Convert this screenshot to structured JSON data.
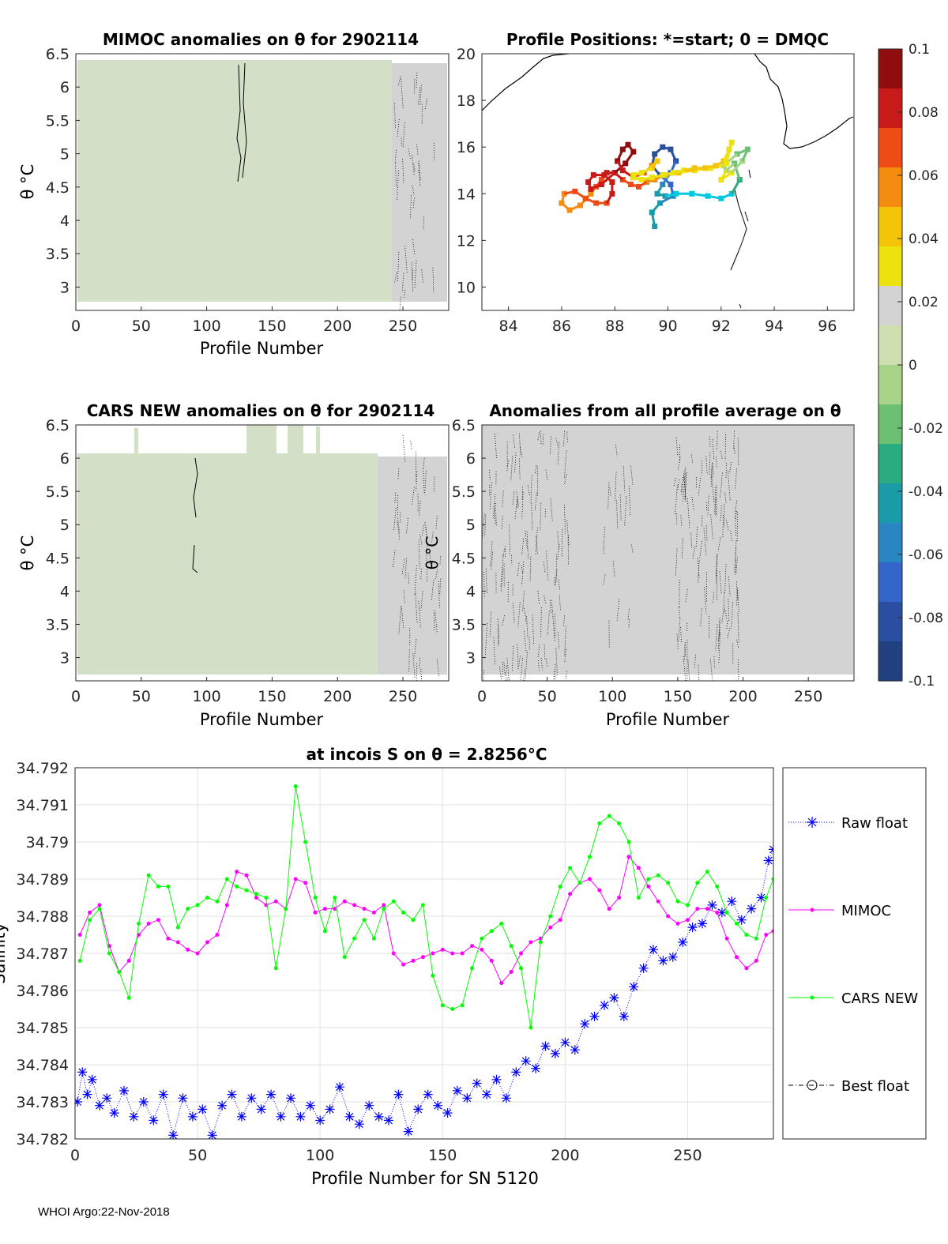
{
  "footer": "WHOI Argo:22-Nov-2018",
  "colors": {
    "raw": "#0000ff",
    "mimoc": "#ff00ff",
    "cars": "#00ff00",
    "best": "#000000",
    "field_gray": "#d3d3d3",
    "field_green": "#d4dfc8"
  },
  "chart_data": [
    {
      "type": "heatmap",
      "id": "mimoc",
      "title": "MIMOC anomalies on θ  for 2902114",
      "xlabel": "Profile Number",
      "ylabel": "θ °C",
      "xlim": [
        0,
        285
      ],
      "ylim": [
        2.65,
        6.5
      ],
      "xticks": [
        "0",
        "50",
        "100",
        "150",
        "200",
        "250"
      ],
      "yticks": [
        "6.5",
        "6",
        "5.5",
        "5",
        "4.5",
        "4",
        "3.5",
        "3"
      ]
    },
    {
      "type": "scatter",
      "id": "positions",
      "title": "Profile Positions: *=start; 0 = DMQC",
      "xlim": [
        83,
        97
      ],
      "ylim": [
        9,
        20
      ],
      "xticks": [
        "84",
        "86",
        "88",
        "90",
        "92",
        "94",
        "96"
      ],
      "yticks": [
        "20",
        "18",
        "16",
        "14",
        "12",
        "10"
      ],
      "track": {
        "lon": [
          89.5,
          89.4,
          89.7,
          90.2,
          90.1,
          89.7,
          89.4,
          89.5,
          89.8,
          90.1,
          90.3,
          90.1,
          89.8,
          89.6,
          89.9,
          90.3,
          90.9,
          91.5,
          92.0,
          92.4,
          92.7,
          92.5,
          92.2,
          92.0,
          92.4,
          92.8,
          93.0,
          92.6,
          92.1,
          91.6,
          91.0,
          90.4,
          89.9,
          89.5,
          89.2,
          88.9,
          88.6,
          88.3,
          88.0,
          87.7,
          87.5,
          87.3,
          87.1,
          86.7,
          86.3,
          86.0,
          86.1,
          86.5,
          86.9,
          87.3,
          87.7,
          87.9,
          87.9,
          87.6,
          87.2,
          87.0,
          87.1,
          87.5,
          88.0,
          88.4,
          88.7,
          88.5,
          88.3,
          88.1,
          88.3,
          88.7,
          89.1,
          89.4,
          89.6,
          89.4,
          89.0,
          88.7,
          88.7,
          89.0,
          89.4,
          89.8,
          90.2,
          90.6,
          91.0,
          91.4,
          91.8,
          92.1,
          92.3,
          92.4,
          92.2
        ],
        "lat": [
          12.6,
          13.2,
          13.6,
          13.9,
          14.4,
          14.8,
          15.2,
          15.7,
          16.0,
          15.9,
          15.4,
          14.9,
          14.4,
          14.0,
          13.9,
          14.0,
          14.0,
          13.9,
          13.8,
          14.0,
          14.6,
          15.3,
          15.0,
          14.6,
          14.9,
          15.4,
          15.9,
          15.7,
          15.2,
          15.1,
          15.0,
          14.9,
          14.8,
          14.6,
          14.5,
          14.3,
          14.4,
          14.6,
          14.9,
          14.9,
          14.6,
          14.3,
          14.0,
          13.5,
          13.3,
          13.6,
          14.0,
          14.1,
          13.8,
          13.6,
          13.6,
          14.0,
          14.5,
          14.8,
          14.8,
          14.5,
          14.2,
          14.4,
          14.9,
          15.3,
          15.8,
          16.1,
          15.9,
          15.4,
          15.0,
          14.7,
          14.9,
          15.2,
          15.4,
          15.1,
          14.9,
          14.8,
          14.7,
          14.6,
          14.7,
          14.8,
          14.9,
          15.0,
          15.1,
          15.1,
          15.2,
          15.4,
          15.9,
          16.2,
          15.3
        ]
      }
    },
    {
      "type": "heatmap",
      "id": "cars",
      "title": "CARS NEW anomalies on θ for 2902114",
      "xlabel": "Profile Number",
      "ylabel": "θ °C",
      "xlim": [
        0,
        285
      ],
      "ylim": [
        2.65,
        6.5
      ],
      "xticks": [
        "0",
        "50",
        "100",
        "150",
        "200",
        "250"
      ],
      "yticks": [
        "6.5",
        "6",
        "5.5",
        "5",
        "4.5",
        "4",
        "3.5",
        "3"
      ],
      "stray_label": "θ °C"
    },
    {
      "type": "heatmap",
      "id": "profile_avg",
      "title": "Anomalies from all profile average on θ",
      "xlabel": "Profile Number",
      "xlim": [
        0,
        285
      ],
      "ylim": [
        2.65,
        6.5
      ],
      "xticks": [
        "0",
        "50",
        "100",
        "150",
        "200",
        "250"
      ],
      "yticks": [
        "6.5",
        "6",
        "5.5",
        "5",
        "4.5",
        "4",
        "3.5",
        "3"
      ]
    },
    {
      "type": "colorbar",
      "id": "colorbar",
      "range": [
        -0.1,
        0.1
      ],
      "ticks": [
        "0.1",
        "0.08",
        "0.06",
        "0.04",
        "0.02",
        "0",
        "-0.02",
        "-0.04",
        "-0.06",
        "-0.08",
        "-0.1"
      ],
      "colors": [
        "#8f0c0f",
        "#c91a1a",
        "#ef4b14",
        "#f58c10",
        "#f3c408",
        "#ece30e",
        "#d3d3d3",
        "#cfe0b0",
        "#a8d48a",
        "#6cc072",
        "#2aab80",
        "#1b9ba8",
        "#2a86c2",
        "#3366c8",
        "#2a4ea0",
        "#20407f"
      ]
    },
    {
      "type": "line",
      "id": "salinity",
      "title": "at incois S on θ = 2.8256°C",
      "xlabel": "Profile Number for SN 5120",
      "ylabel": "Salinity",
      "xlim": [
        0,
        285
      ],
      "ylim": [
        34.782,
        34.792
      ],
      "xticks": [
        "0",
        "50",
        "100",
        "150",
        "200",
        "250"
      ],
      "yticks": [
        "34.792",
        "34.791",
        "34.79",
        "34.789",
        "34.788",
        "34.787",
        "34.786",
        "34.785",
        "34.784",
        "34.783",
        "34.782"
      ],
      "legend": [
        "Raw float",
        "MIMOC",
        "CARS NEW",
        "Best float"
      ],
      "series": [
        {
          "name": "Raw float",
          "x": [
            1,
            3,
            5,
            7,
            10,
            13,
            16,
            20,
            24,
            28,
            32,
            36,
            40,
            44,
            48,
            52,
            56,
            60,
            64,
            68,
            72,
            76,
            80,
            84,
            88,
            92,
            96,
            100,
            104,
            108,
            112,
            116,
            120,
            124,
            128,
            132,
            136,
            140,
            144,
            148,
            152,
            156,
            160,
            164,
            168,
            172,
            176,
            180,
            184,
            188,
            192,
            196,
            200,
            204,
            208,
            212,
            216,
            220,
            224,
            228,
            232,
            236,
            240,
            244,
            248,
            252,
            256,
            260,
            264,
            268,
            272,
            276,
            280,
            283,
            285
          ],
          "values": [
            34.783,
            34.7838,
            34.7832,
            34.7836,
            34.7829,
            34.7831,
            34.7827,
            34.7833,
            34.7826,
            34.783,
            34.7825,
            34.7832,
            34.7821,
            34.7831,
            34.7826,
            34.7828,
            34.7821,
            34.7829,
            34.7832,
            34.7826,
            34.7831,
            34.7828,
            34.7832,
            34.7826,
            34.7831,
            34.7826,
            34.7829,
            34.7825,
            34.7828,
            34.7834,
            34.7826,
            34.7824,
            34.7829,
            34.7826,
            34.7825,
            34.7832,
            34.7822,
            34.7828,
            34.7832,
            34.7829,
            34.7827,
            34.7833,
            34.7831,
            34.7835,
            34.7832,
            34.7836,
            34.7831,
            34.7838,
            34.7841,
            34.7839,
            34.7845,
            34.7843,
            34.7846,
            34.7844,
            34.7851,
            34.7853,
            34.7856,
            34.7858,
            34.7853,
            34.7861,
            34.7866,
            34.7871,
            34.7868,
            34.7869,
            34.7873,
            34.7877,
            34.7878,
            34.7883,
            34.7881,
            34.7884,
            34.7879,
            34.7882,
            34.7885,
            34.7895,
            34.7898
          ]
        },
        {
          "name": "MIMOC",
          "x": [
            2,
            6,
            10,
            14,
            18,
            22,
            26,
            30,
            34,
            38,
            42,
            46,
            50,
            54,
            58,
            62,
            66,
            70,
            74,
            78,
            82,
            86,
            90,
            94,
            98,
            102,
            106,
            110,
            114,
            118,
            122,
            126,
            130,
            134,
            138,
            142,
            146,
            150,
            154,
            158,
            162,
            166,
            170,
            174,
            178,
            182,
            186,
            190,
            194,
            198,
            202,
            206,
            210,
            214,
            218,
            222,
            226,
            230,
            234,
            238,
            242,
            246,
            250,
            254,
            258,
            262,
            266,
            270,
            274,
            278,
            282,
            285
          ],
          "values": [
            34.7875,
            34.7881,
            34.7883,
            34.7872,
            34.7865,
            34.7868,
            34.7875,
            34.7878,
            34.7879,
            34.7874,
            34.7873,
            34.7871,
            34.787,
            34.7873,
            34.7875,
            34.7883,
            34.7892,
            34.7891,
            34.7885,
            34.7883,
            34.7884,
            34.7882,
            34.789,
            34.7889,
            34.7881,
            34.7882,
            34.7882,
            34.7884,
            34.7883,
            34.7882,
            34.7881,
            34.7883,
            34.787,
            34.7867,
            34.7868,
            34.7869,
            34.787,
            34.7871,
            34.787,
            34.787,
            34.7872,
            34.7871,
            34.7868,
            34.7862,
            34.7865,
            34.787,
            34.7873,
            34.7874,
            34.7877,
            34.7879,
            34.7886,
            34.7889,
            34.789,
            34.7887,
            34.7882,
            34.7885,
            34.7896,
            34.7893,
            34.7888,
            34.7884,
            34.788,
            34.7878,
            34.7879,
            34.7882,
            34.7882,
            34.7881,
            34.7874,
            34.7869,
            34.7866,
            34.7868,
            34.7875,
            34.7876
          ]
        },
        {
          "name": "CARS NEW",
          "x": [
            2,
            6,
            10,
            14,
            18,
            22,
            26,
            30,
            34,
            38,
            42,
            46,
            50,
            54,
            58,
            62,
            66,
            70,
            74,
            78,
            82,
            86,
            90,
            94,
            98,
            102,
            106,
            110,
            114,
            118,
            122,
            126,
            130,
            134,
            138,
            142,
            146,
            150,
            154,
            158,
            162,
            166,
            170,
            174,
            178,
            182,
            186,
            190,
            194,
            198,
            202,
            206,
            210,
            214,
            218,
            222,
            226,
            230,
            234,
            238,
            242,
            246,
            250,
            254,
            258,
            262,
            266,
            270,
            274,
            278,
            282,
            285
          ],
          "values": [
            34.7868,
            34.7879,
            34.7882,
            34.787,
            34.7865,
            34.7858,
            34.7878,
            34.7891,
            34.7888,
            34.7888,
            34.7877,
            34.7882,
            34.7883,
            34.7885,
            34.7884,
            34.789,
            34.7888,
            34.7887,
            34.7886,
            34.7885,
            34.7866,
            34.7882,
            34.7915,
            34.79,
            34.7885,
            34.7876,
            34.7885,
            34.7869,
            34.7874,
            34.7879,
            34.7874,
            34.7882,
            34.7884,
            34.7881,
            34.7879,
            34.7883,
            34.7864,
            34.7856,
            34.7855,
            34.7856,
            34.7866,
            34.7874,
            34.7876,
            34.7878,
            34.7872,
            34.7866,
            34.785,
            34.7873,
            34.788,
            34.7888,
            34.7893,
            34.7889,
            34.7896,
            34.7905,
            34.7907,
            34.7905,
            34.79,
            34.7885,
            34.789,
            34.7891,
            34.7889,
            34.7884,
            34.7883,
            34.7889,
            34.7892,
            34.7888,
            34.7881,
            34.7878,
            34.7875,
            34.7874,
            34.7885,
            34.789
          ]
        }
      ]
    }
  ]
}
